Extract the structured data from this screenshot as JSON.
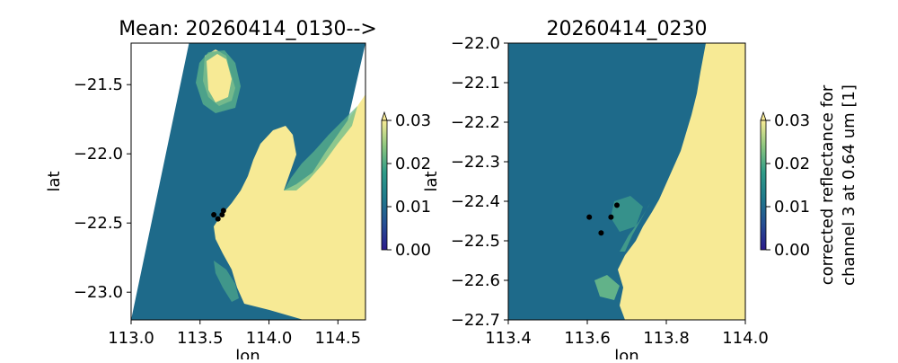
{
  "colors": {
    "cmap_low": "#2a1a8c",
    "cmap_mid": "#1f6d8c",
    "cmap_mid2": "#3aa389",
    "cmap_high": "#f9ec96",
    "land": "#f7ea95",
    "water": "#1e6e8a",
    "marker": "#000000"
  },
  "chart_data": [
    {
      "type": "heatmap",
      "title": "Mean: 20260414_0130-->",
      "xlabel": "lon",
      "ylabel": "lat",
      "xlim": [
        113.0,
        114.7
      ],
      "ylim": [
        -23.2,
        -21.2
      ],
      "xticks": [
        113.0,
        113.5,
        114.0,
        114.5
      ],
      "xtick_labels": [
        "113.0",
        "113.5",
        "114.0",
        "114.5"
      ],
      "yticks": [
        -21.5,
        -22.0,
        -22.5,
        -23.0
      ],
      "ytick_labels": [
        "−21.5",
        "−22.0",
        "−22.5",
        "−23.0"
      ],
      "swath_corners": [
        [
          113.0,
          -23.2
        ],
        [
          113.42,
          -21.2
        ],
        [
          114.7,
          -21.2
        ],
        [
          114.24,
          -23.2
        ]
      ],
      "points": [
        {
          "lon": 113.6,
          "lat": -22.44
        },
        {
          "lon": 113.63,
          "lat": -22.47
        },
        {
          "lon": 113.66,
          "lat": -22.44
        },
        {
          "lon": 113.67,
          "lat": -22.41
        }
      ],
      "colorbar": {
        "min": 0.0,
        "max": 0.03,
        "ticks": [
          "0.00",
          "0.01",
          "0.02",
          "0.03"
        ],
        "extend": "max",
        "label": ""
      }
    },
    {
      "type": "heatmap",
      "title": "20260414_0230",
      "xlabel": "lon",
      "ylabel": "lat",
      "xlim": [
        113.4,
        114.0
      ],
      "ylim": [
        -22.7,
        -22.0
      ],
      "xticks": [
        113.4,
        113.6,
        113.8,
        114.0
      ],
      "xtick_labels": [
        "113.4",
        "113.6",
        "113.8",
        "114.0"
      ],
      "yticks": [
        -22.0,
        -22.1,
        -22.2,
        -22.3,
        -22.4,
        -22.5,
        -22.6,
        -22.7
      ],
      "ytick_labels": [
        "−22.0",
        "−22.1",
        "−22.2",
        "−22.3",
        "−22.4",
        "−22.5",
        "−22.6",
        "−22.7"
      ],
      "points": [
        {
          "lon": 113.605,
          "lat": -22.44
        },
        {
          "lon": 113.635,
          "lat": -22.48
        },
        {
          "lon": 113.66,
          "lat": -22.44
        },
        {
          "lon": 113.675,
          "lat": -22.41
        }
      ],
      "colorbar": {
        "min": 0.0,
        "max": 0.03,
        "ticks": [
          "0.00",
          "0.01",
          "0.02",
          "0.03"
        ],
        "extend": "max",
        "label": "corrected reflectance for channel 3 at 0.64 um [1]",
        "label_lines": [
          "corrected reflectance for",
          "channel 3 at 0.64 um [1]"
        ]
      }
    }
  ]
}
